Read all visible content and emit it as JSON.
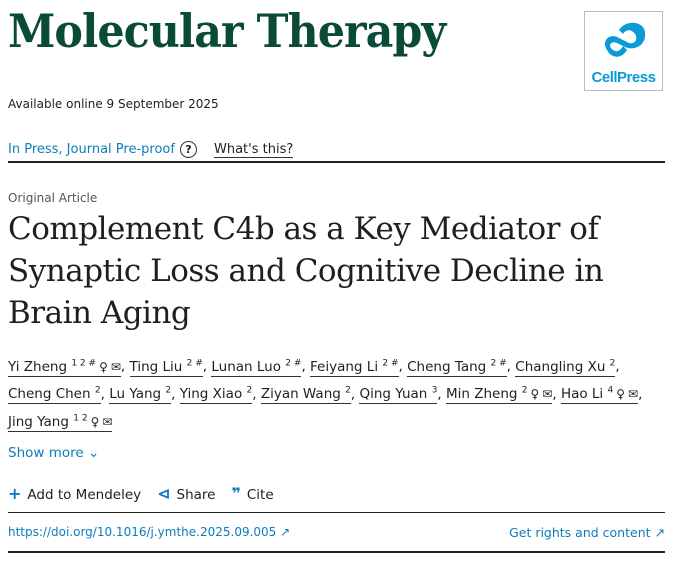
{
  "journal": "Molecular Therapy",
  "publisher_logo": "CellPress",
  "available": "Available online 9 September 2025",
  "status": "In Press, Journal Pre-proof",
  "whats_this": "What's this?",
  "article_type": "Original Article",
  "title": "Complement C4b as a Key Mediator of Synaptic Loss and Cognitive Decline in Brain Aging",
  "authors": [
    {
      "name": "Yi Zheng",
      "sup": "1 2 #",
      "contact": true
    },
    {
      "name": "Ting Liu",
      "sup": "2 #",
      "contact": false
    },
    {
      "name": "Lunan Luo",
      "sup": "2 #",
      "contact": false
    },
    {
      "name": "Feiyang Li",
      "sup": "2 #",
      "contact": false
    },
    {
      "name": "Cheng Tang",
      "sup": "2 #",
      "contact": false
    },
    {
      "name": "Changling Xu",
      "sup": "2",
      "contact": false
    },
    {
      "name": "Cheng Chen",
      "sup": "2",
      "contact": false
    },
    {
      "name": "Lu Yang",
      "sup": "2",
      "contact": false
    },
    {
      "name": "Ying Xiao",
      "sup": "2",
      "contact": false
    },
    {
      "name": "Ziyan Wang",
      "sup": "2",
      "contact": false
    },
    {
      "name": "Qing Yuan",
      "sup": "3",
      "contact": false
    },
    {
      "name": "Min Zheng",
      "sup": "2",
      "contact": true
    },
    {
      "name": "Hao Li",
      "sup": "4",
      "contact": true
    },
    {
      "name": "Jing Yang",
      "sup": "1 2",
      "contact": true
    }
  ],
  "show_more": "Show more",
  "actions": {
    "mendeley": "Add to Mendeley",
    "share": "Share",
    "cite": "Cite"
  },
  "doi": "https://doi.org/10.1016/j.ymthe.2025.09.005",
  "rights": "Get rights and content",
  "colors": {
    "journal": "#0a4a38",
    "link": "#0c7dbb",
    "cellpress": "#0a9ad8"
  }
}
